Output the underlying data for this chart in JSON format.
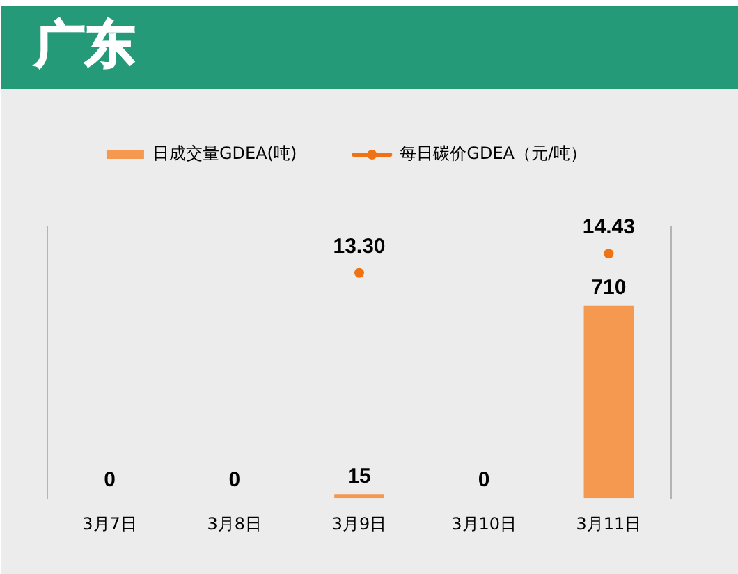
{
  "chart_data": {
    "type": "bar",
    "title": "广东",
    "categories": [
      "3月7日",
      "3月8日",
      "3月9日",
      "3月10日",
      "3月11日"
    ],
    "series": [
      {
        "name": "日成交量GDEA(吨)",
        "color": "#f4994f",
        "values": [
          0,
          0,
          15,
          0,
          710
        ],
        "value_labels": [
          "0",
          "0",
          "15",
          "0",
          "710"
        ]
      },
      {
        "name": "每日碳价GDEA（元/吨）",
        "type": "scatter",
        "axis": "y2",
        "color": "#f07213",
        "marker": "circle",
        "x": [
          "3月9日",
          "3月11日"
        ],
        "values": [
          13.3,
          14.43
        ],
        "value_labels": [
          "13.30",
          "14.43"
        ]
      }
    ],
    "ylim": [
      0,
      1000
    ],
    "y2lim": [
      0,
      16
    ],
    "tick_labels": "x",
    "legend": "top"
  }
}
